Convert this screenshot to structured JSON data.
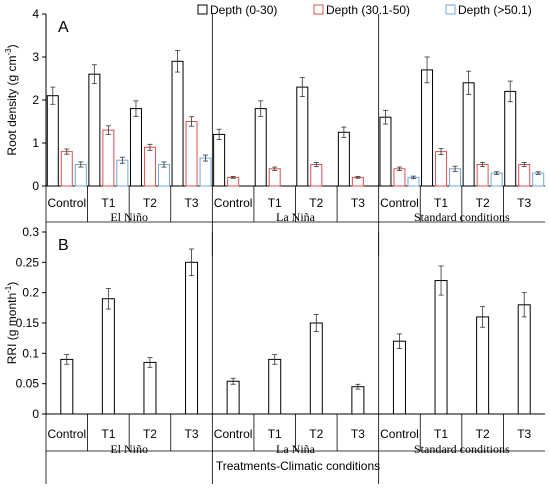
{
  "chart_data": [
    {
      "panel": "A",
      "type": "bar",
      "ylabel": "Root density (g cm",
      "ylabel_sup": "-3",
      "ylabel_tail": ")",
      "ylim": [
        0,
        4
      ],
      "yticks": [
        "0",
        "1",
        "2",
        "3",
        "4"
      ],
      "groups": [
        {
          "name": "El Niño",
          "categories": [
            "Control",
            "T1",
            "T2",
            "T3"
          ]
        },
        {
          "name": "La Niña",
          "categories": [
            "Control",
            "T1",
            "T2",
            "T3"
          ]
        },
        {
          "name": "Standard conditions",
          "categories": [
            "Control",
            "T1",
            "T2",
            "T3"
          ]
        }
      ],
      "series": [
        {
          "name": "Depth (0-30)",
          "color": "#000000",
          "values": [
            2.1,
            2.6,
            1.8,
            2.9,
            1.2,
            1.8,
            2.3,
            1.25,
            1.6,
            2.7,
            2.4,
            2.2
          ],
          "errors": [
            0.2,
            0.22,
            0.18,
            0.25,
            0.12,
            0.18,
            0.22,
            0.12,
            0.16,
            0.3,
            0.27,
            0.24
          ]
        },
        {
          "name": "Depth (30.1-50)",
          "color": "#d9534f",
          "values": [
            0.8,
            1.3,
            0.9,
            1.5,
            0.2,
            0.4,
            0.5,
            0.2,
            0.4,
            0.8,
            0.5,
            0.5
          ],
          "errors": [
            0.06,
            0.1,
            0.07,
            0.11,
            0.02,
            0.04,
            0.05,
            0.02,
            0.04,
            0.07,
            0.05,
            0.05
          ]
        },
        {
          "name": "Depth (>50.1)",
          "color": "#6fa8dc",
          "values": [
            0.5,
            0.6,
            0.5,
            0.65,
            null,
            null,
            null,
            null,
            0.2,
            0.4,
            0.3,
            0.3
          ],
          "errors": [
            0.06,
            0.07,
            0.06,
            0.07,
            null,
            null,
            null,
            null,
            0.03,
            0.06,
            0.03,
            0.03
          ]
        }
      ]
    },
    {
      "panel": "B",
      "type": "bar",
      "ylabel": "RRI (g month",
      "ylabel_sup": "-1",
      "ylabel_tail": ")",
      "ylim": [
        0,
        0.3
      ],
      "yticks": [
        "0",
        "0.05",
        "0.1",
        "0.15",
        "0.2",
        "0.25",
        "0.3"
      ],
      "groups": [
        {
          "name": "El Niño",
          "categories": [
            "Control",
            "T1",
            "T2",
            "T3"
          ]
        },
        {
          "name": "La Niña",
          "categories": [
            "Control",
            "T1",
            "T2",
            "T3"
          ]
        },
        {
          "name": "Standard conditions",
          "categories": [
            "Control",
            "T1",
            "T2",
            "T3"
          ]
        }
      ],
      "series": [
        {
          "name": "Depth (0-30)",
          "color": "#000000",
          "values": [
            0.09,
            0.19,
            0.085,
            0.25,
            0.054,
            0.09,
            0.15,
            0.045,
            0.12,
            0.22,
            0.16,
            0.18
          ],
          "errors": [
            0.008,
            0.017,
            0.008,
            0.022,
            0.005,
            0.008,
            0.014,
            0.004,
            0.012,
            0.024,
            0.017,
            0.02
          ]
        }
      ]
    }
  ],
  "xlabel": "Treatments-Climatic conditions"
}
